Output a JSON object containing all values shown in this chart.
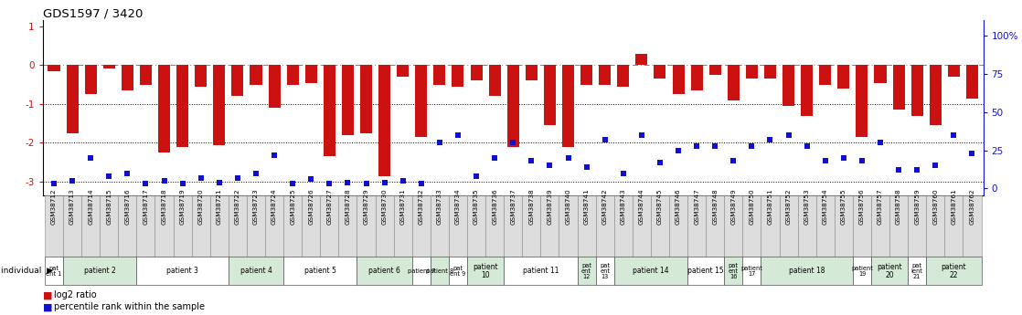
{
  "title": "GDS1597 / 3420",
  "samples": [
    "GSM38712",
    "GSM38713",
    "GSM38714",
    "GSM38715",
    "GSM38716",
    "GSM38717",
    "GSM38718",
    "GSM38719",
    "GSM38720",
    "GSM38721",
    "GSM38722",
    "GSM38723",
    "GSM38724",
    "GSM38725",
    "GSM38726",
    "GSM38727",
    "GSM38728",
    "GSM38729",
    "GSM38730",
    "GSM38731",
    "GSM38732",
    "GSM38733",
    "GSM38734",
    "GSM38735",
    "GSM38736",
    "GSM38737",
    "GSM38738",
    "GSM38739",
    "GSM38740",
    "GSM38741",
    "GSM38742",
    "GSM38743",
    "GSM38744",
    "GSM38745",
    "GSM38746",
    "GSM38747",
    "GSM38748",
    "GSM38749",
    "GSM38750",
    "GSM38751",
    "GSM38752",
    "GSM38753",
    "GSM38754",
    "GSM38755",
    "GSM38756",
    "GSM38757",
    "GSM38758",
    "GSM38759",
    "GSM38760",
    "GSM38761",
    "GSM38762"
  ],
  "log2_ratio": [
    -0.15,
    -1.75,
    -0.75,
    -0.08,
    -0.65,
    -0.5,
    -2.25,
    -2.1,
    -0.55,
    -2.05,
    -0.8,
    -0.5,
    -1.1,
    -0.5,
    -0.45,
    -2.35,
    -1.8,
    -1.75,
    -2.85,
    -0.3,
    -1.85,
    -0.5,
    -0.55,
    -0.4,
    -0.8,
    -2.1,
    -0.4,
    -1.55,
    -2.1,
    -0.5,
    -0.5,
    -0.55,
    0.28,
    -0.35,
    -0.75,
    -0.65,
    -0.25,
    -0.9,
    -0.35,
    -0.35,
    -1.05,
    -1.3,
    -0.5,
    -0.6,
    -1.85,
    -0.45,
    -1.15,
    -1.3,
    -1.55,
    -0.3,
    -0.85
  ],
  "percentile_rank": [
    3,
    5,
    20,
    8,
    10,
    3,
    5,
    3,
    7,
    4,
    7,
    10,
    22,
    3,
    6,
    3,
    4,
    3,
    4,
    5,
    3,
    30,
    35,
    8,
    20,
    30,
    18,
    15,
    20,
    14,
    32,
    10,
    35,
    17,
    25,
    28,
    28,
    18,
    28,
    32,
    35,
    28,
    18,
    20,
    18,
    30,
    12,
    12,
    15,
    35,
    23
  ],
  "patients": [
    {
      "label": "pat\nent 1",
      "start": 0,
      "end": 1,
      "color": "#ffffff"
    },
    {
      "label": "patient 2",
      "start": 1,
      "end": 5,
      "color": "#d5ead6"
    },
    {
      "label": "patient 3",
      "start": 5,
      "end": 10,
      "color": "#ffffff"
    },
    {
      "label": "patient 4",
      "start": 10,
      "end": 13,
      "color": "#d5ead6"
    },
    {
      "label": "patient 5",
      "start": 13,
      "end": 17,
      "color": "#ffffff"
    },
    {
      "label": "patient 6",
      "start": 17,
      "end": 20,
      "color": "#d5ead6"
    },
    {
      "label": "patient 7",
      "start": 20,
      "end": 21,
      "color": "#ffffff"
    },
    {
      "label": "patient 8",
      "start": 21,
      "end": 22,
      "color": "#d5ead6"
    },
    {
      "label": "pat\nent 9",
      "start": 22,
      "end": 23,
      "color": "#ffffff"
    },
    {
      "label": "patient\n10",
      "start": 23,
      "end": 25,
      "color": "#d5ead6"
    },
    {
      "label": "patient 11",
      "start": 25,
      "end": 29,
      "color": "#ffffff"
    },
    {
      "label": "pat\nent\n12",
      "start": 29,
      "end": 30,
      "color": "#d5ead6"
    },
    {
      "label": "pat\nent\n13",
      "start": 30,
      "end": 31,
      "color": "#ffffff"
    },
    {
      "label": "patient 14",
      "start": 31,
      "end": 35,
      "color": "#d5ead6"
    },
    {
      "label": "patient 15",
      "start": 35,
      "end": 37,
      "color": "#ffffff"
    },
    {
      "label": "pat\nent\n16",
      "start": 37,
      "end": 38,
      "color": "#d5ead6"
    },
    {
      "label": "patient\n17",
      "start": 38,
      "end": 39,
      "color": "#ffffff"
    },
    {
      "label": "patient 18",
      "start": 39,
      "end": 44,
      "color": "#d5ead6"
    },
    {
      "label": "patient\n19",
      "start": 44,
      "end": 45,
      "color": "#ffffff"
    },
    {
      "label": "patient\n20",
      "start": 45,
      "end": 47,
      "color": "#d5ead6"
    },
    {
      "label": "pat\nient\n21",
      "start": 47,
      "end": 48,
      "color": "#ffffff"
    },
    {
      "label": "patient\n22",
      "start": 48,
      "end": 51,
      "color": "#d5ead6"
    }
  ],
  "bar_color": "#cc1111",
  "dot_color": "#1111cc",
  "ylim_left": [
    -3.35,
    1.15
  ],
  "ylim_right": [
    -4.5,
    110
  ],
  "yticks_left": [
    -3,
    -2,
    -1,
    0,
    1
  ],
  "yticks_right": [
    0,
    25,
    50,
    75,
    100
  ],
  "ytick_labels_right": [
    "0",
    "25",
    "50",
    "75",
    "100%"
  ],
  "gsm_box_color": "#dddddd",
  "gsm_box_edge": "#888888"
}
